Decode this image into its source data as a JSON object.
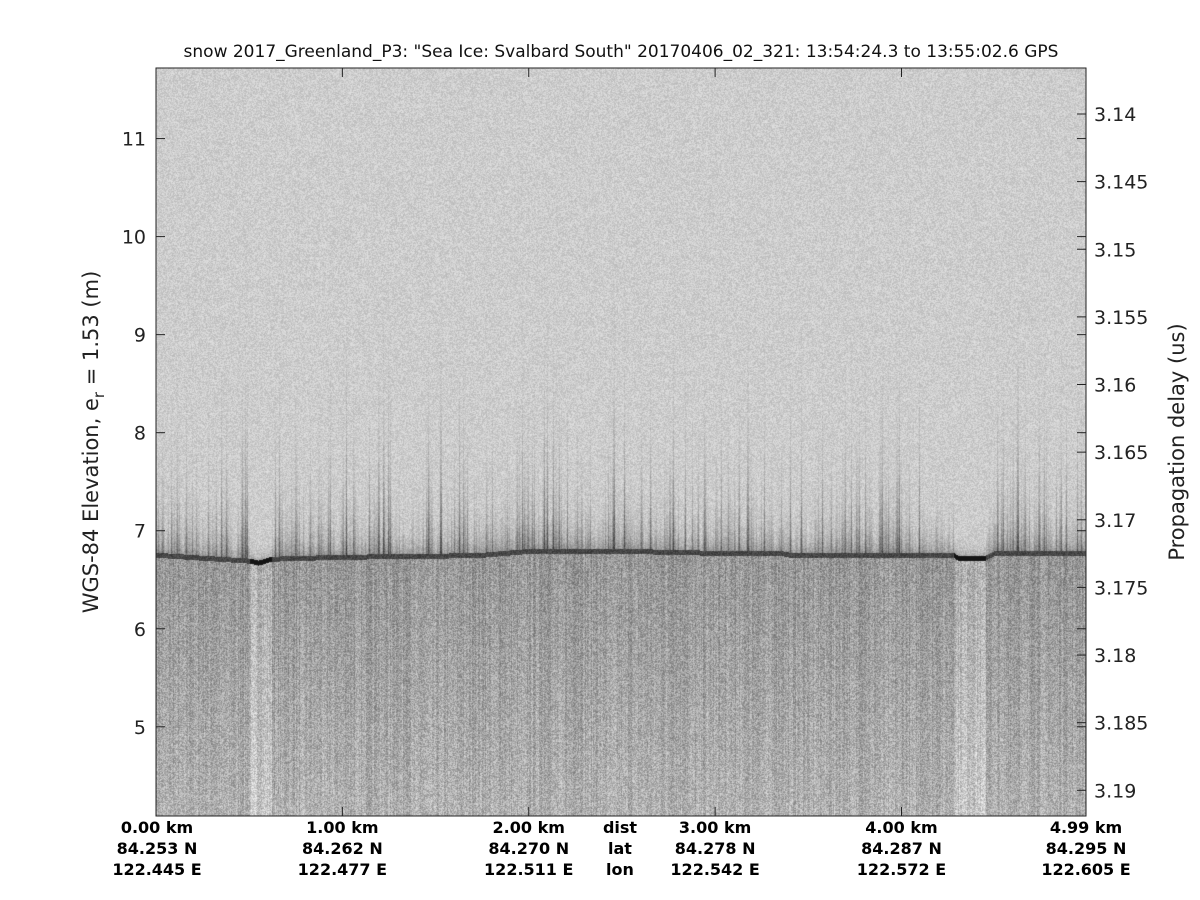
{
  "chart_data": {
    "type": "heatmap",
    "title": "snow 2017_Greenland_P3: \"Sea Ice: Svalbard South\"  20170406_02_321: 13:54:24.3 to 13:55:02.6 GPS",
    "ylabel_left": "WGS-84 Elevation, e",
    "ylabel_left_sub": "r",
    "ylabel_left_suffix": " = 1.53 (m)",
    "ylabel_right": "Propagation delay (us)",
    "colormap": "grayscale",
    "ylim_left": [
      4.09,
      11.72
    ],
    "yticks_left": [
      5,
      6,
      7,
      8,
      9,
      10,
      11
    ],
    "ylim_right": [
      3.1366,
      3.1919
    ],
    "yticks_right": [
      "3.14",
      "3.145",
      "3.15",
      "3.155",
      "3.16",
      "3.165",
      "3.17",
      "3.175",
      "3.18",
      "3.185",
      "3.19"
    ],
    "xlim_km": [
      0,
      4.99
    ],
    "x_ticks": [
      {
        "dist_km": 0,
        "dist": "0.00 km",
        "lat": "84.253 N",
        "lon": "122.445 E"
      },
      {
        "dist_km": 1,
        "dist": "1.00 km",
        "lat": "84.262 N",
        "lon": "122.477 E"
      },
      {
        "dist_km": 2,
        "dist": "2.00 km",
        "lat": "84.270 N",
        "lon": "122.511 E"
      },
      {
        "dist_km": 3,
        "dist": "3.00 km",
        "lat": "84.278 N",
        "lon": "122.542 E"
      },
      {
        "dist_km": 4,
        "dist": "4.00 km",
        "lat": "84.287 N",
        "lon": "122.572 E"
      },
      {
        "dist_km": 4.99,
        "dist": "4.99 km",
        "lat": "84.295 N",
        "lon": "122.605 E"
      }
    ],
    "x_row_labels": {
      "dist": "dist",
      "lat": "lat",
      "lon": "lon"
    },
    "surface_elevation_m": {
      "dist_km": [
        0,
        0.5,
        0.55,
        0.62,
        1.0,
        1.5,
        1.75,
        2.0,
        2.5,
        3.0,
        3.35,
        3.4,
        4.0,
        4.28,
        4.3,
        4.45,
        4.5,
        4.99
      ],
      "elev": [
        6.78,
        6.72,
        6.7,
        6.74,
        6.76,
        6.77,
        6.78,
        6.82,
        6.82,
        6.8,
        6.8,
        6.78,
        6.78,
        6.78,
        6.75,
        6.75,
        6.8,
        6.8
      ]
    }
  }
}
